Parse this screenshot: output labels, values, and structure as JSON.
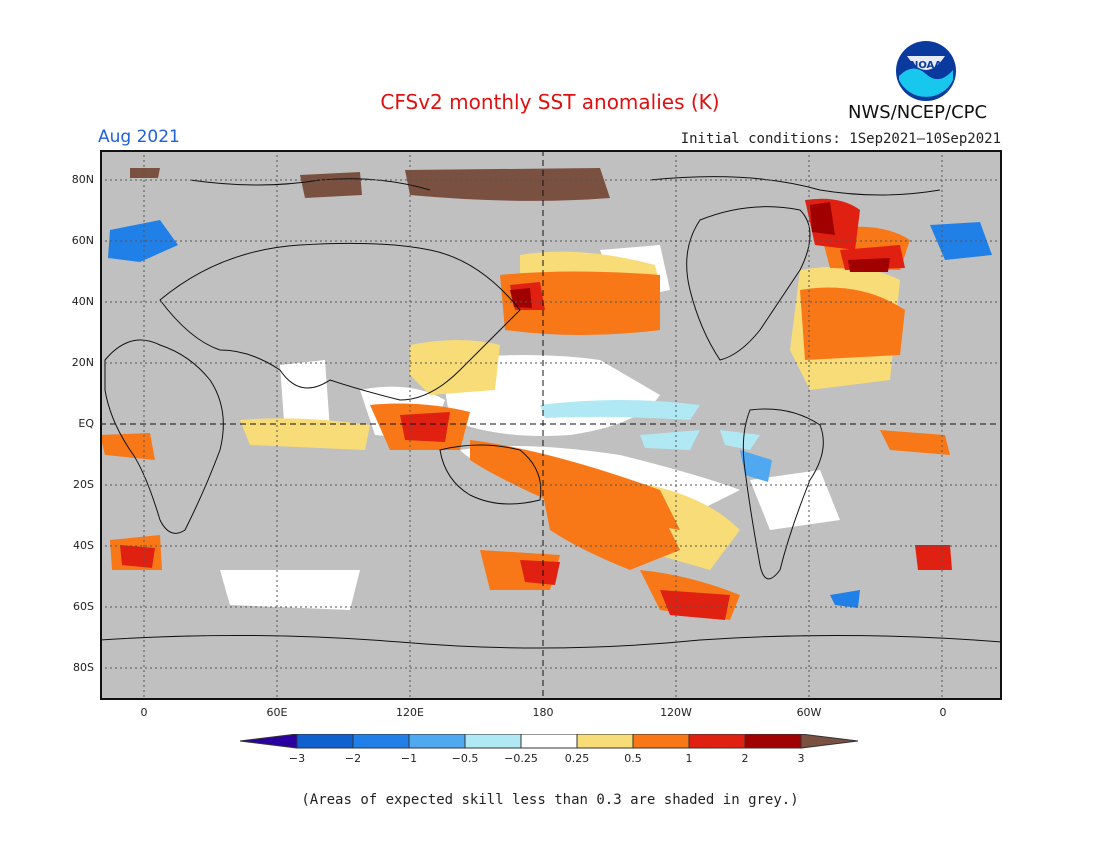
{
  "title": "CFSv2 monthly SST anomalies (K)",
  "period": "Aug 2021",
  "initial_conditions": "Initial conditions: 1Sep2021—10Sep2021",
  "agency": "NWS/NCEP/CPC",
  "logo": {
    "text": "NOAA"
  },
  "footnote": "(Areas of expected skill less than 0.3 are shaded in grey.)",
  "lat_labels": [
    "80N",
    "60N",
    "40N",
    "20N",
    "EQ",
    "20S",
    "40S",
    "60S",
    "80S"
  ],
  "lon_labels": [
    "0",
    "60E",
    "120E",
    "180",
    "120W",
    "60W",
    "0"
  ],
  "colorbar": {
    "labels": [
      "−3",
      "−2",
      "−1",
      "−0.5",
      "−0.25",
      "0.25",
      "0.5",
      "1",
      "2",
      "3"
    ],
    "colors": [
      "#2a00a0",
      "#1060d0",
      "#2080e8",
      "#50a8f0",
      "#b0e8f4",
      "#ffffff",
      "#f8dc78",
      "#f87818",
      "#e02010",
      "#a00000",
      "#7a5040"
    ]
  },
  "colors": {
    "grey_skill_mask": "#c0c0c0",
    "title": "#e01010",
    "period": "#2060e0"
  }
}
